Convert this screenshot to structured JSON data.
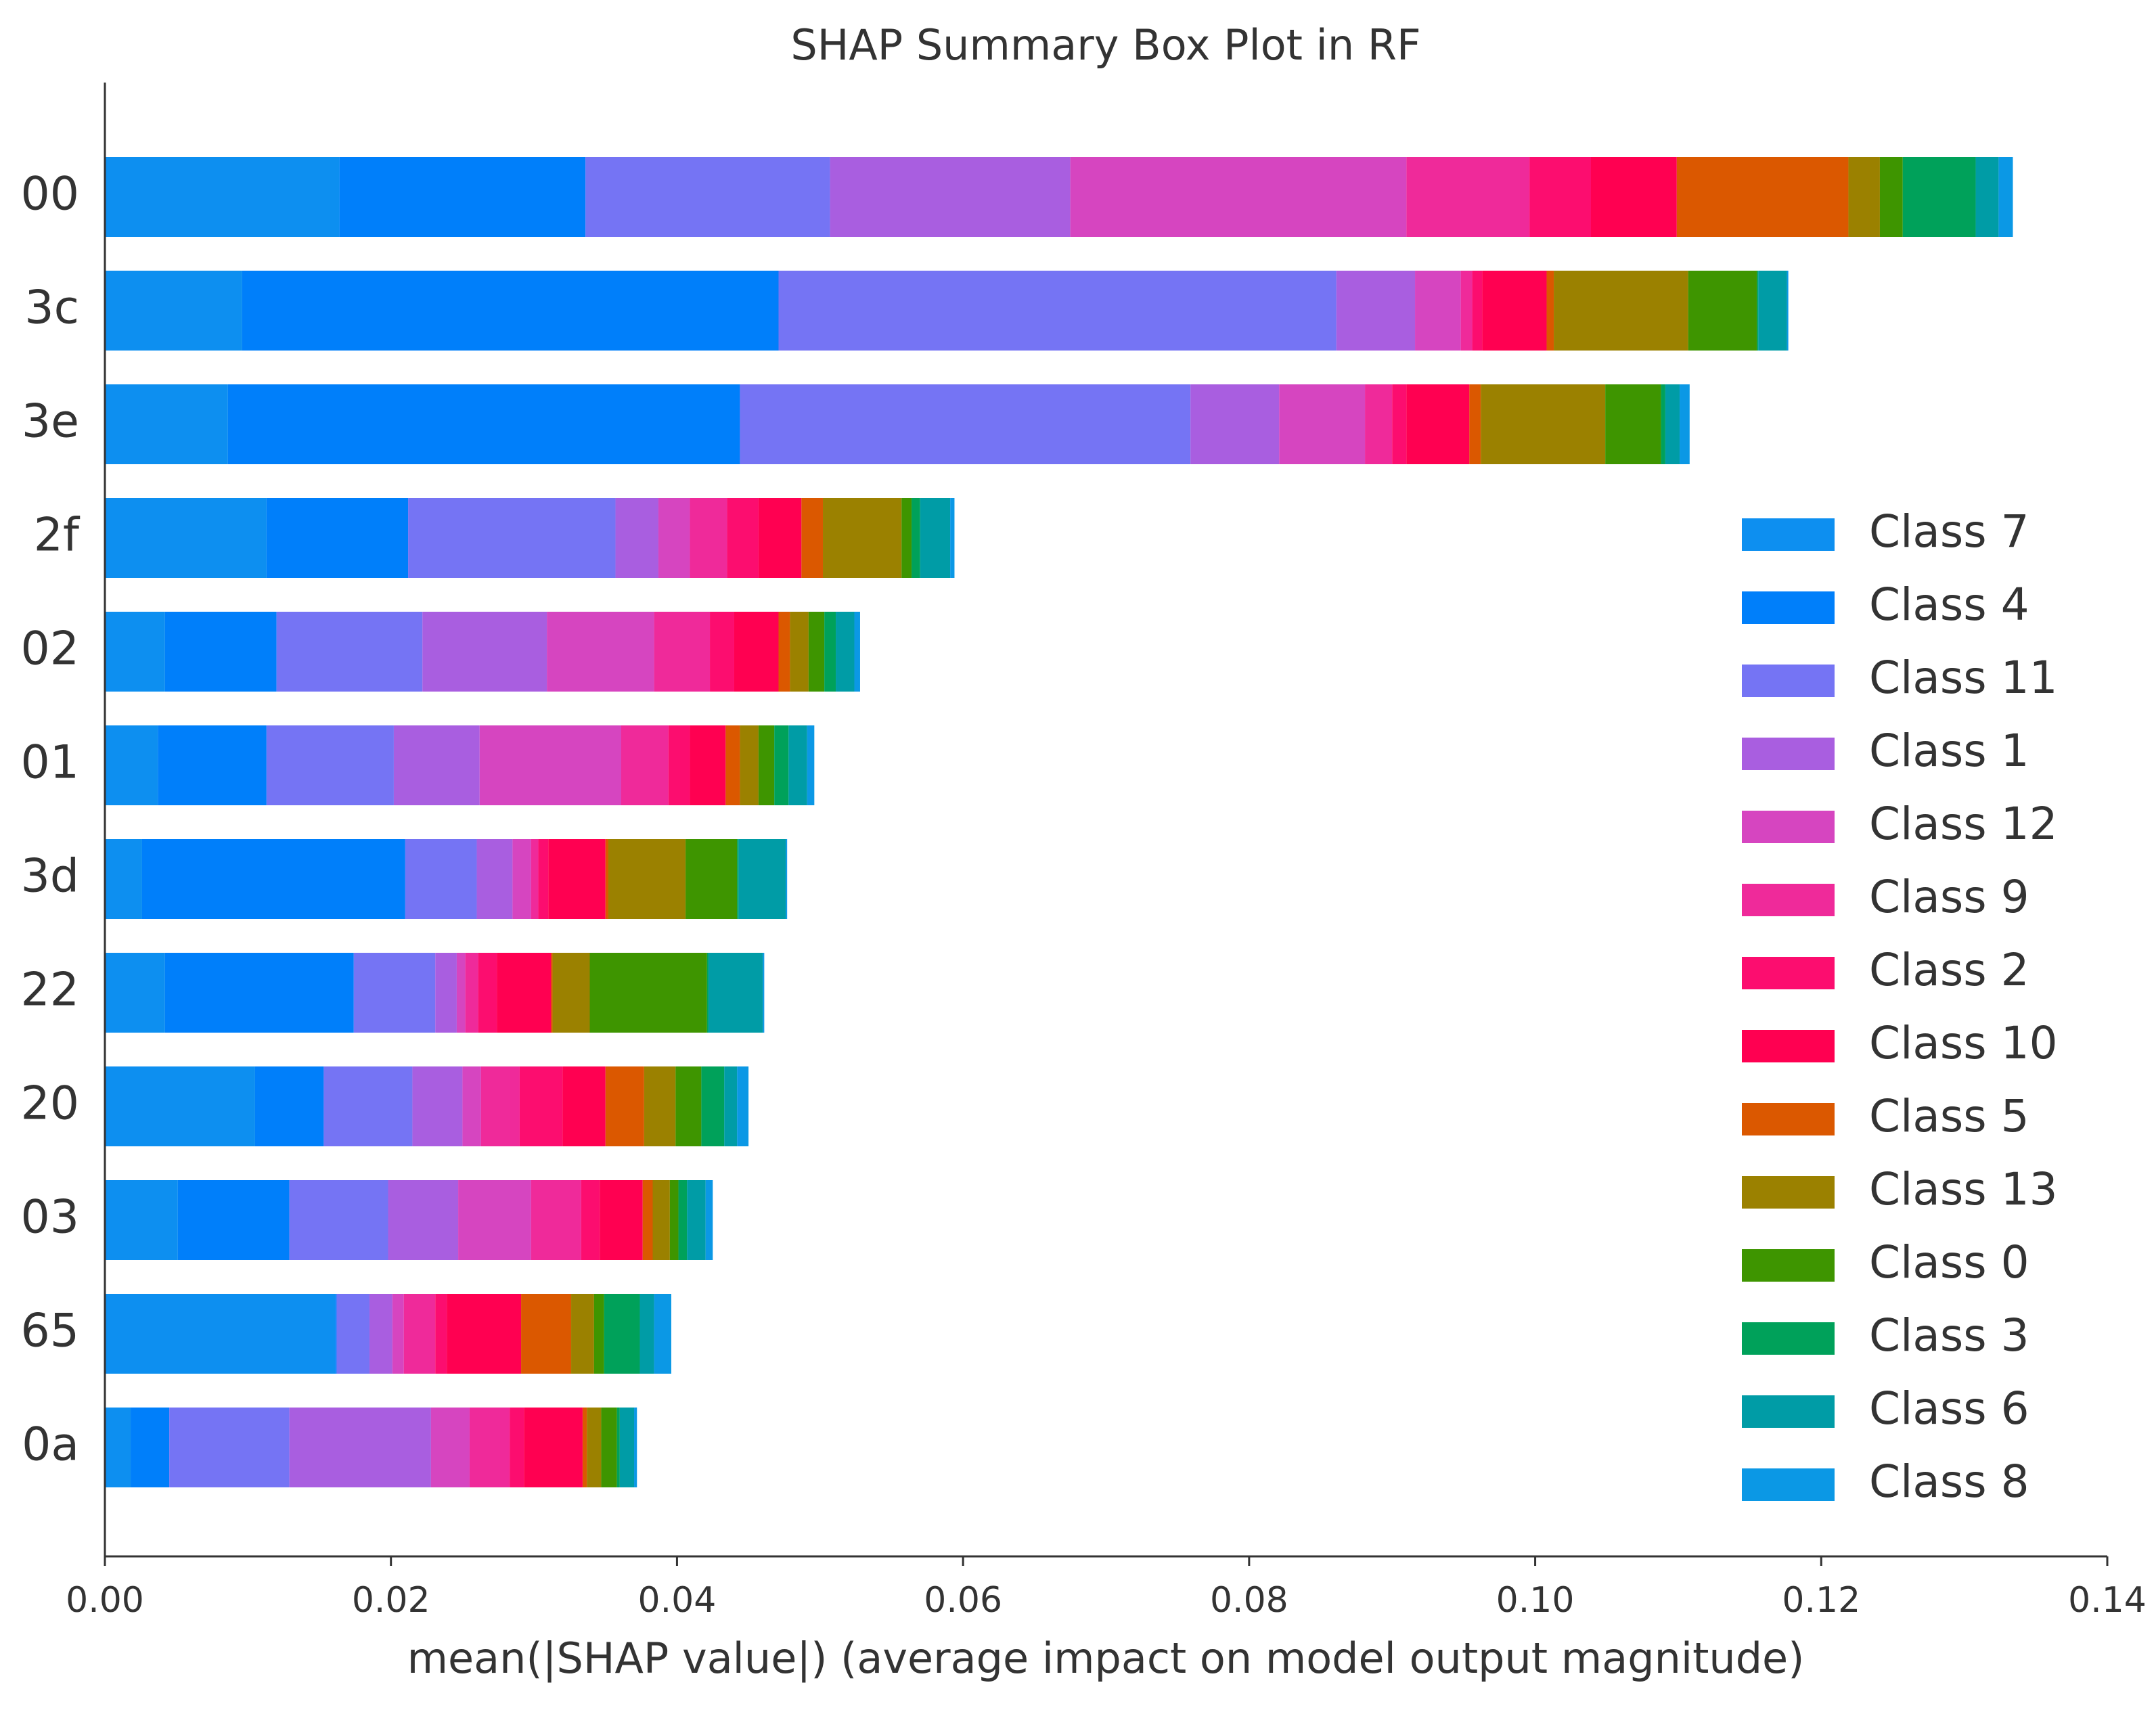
{
  "chart_data": {
    "type": "stacked-bar-horizontal",
    "title": "SHAP Summary Box Plot in RF",
    "x_label": "mean(|SHAP value|) (average impact on model output magnitude)",
    "categories": [
      "00",
      "3c",
      "3e",
      "2f",
      "02",
      "01",
      "3d",
      "22",
      "20",
      "03",
      "65",
      "0a"
    ],
    "xlim": [
      0,
      0.14
    ],
    "xticks": [
      {
        "value": 0,
        "label": "0.00"
      },
      {
        "value": 0.02,
        "label": "0.02"
      },
      {
        "value": 0.04,
        "label": "0.04"
      },
      {
        "value": 0.06,
        "label": "0.06"
      },
      {
        "value": 0.08,
        "label": "0.08"
      },
      {
        "value": 0.1,
        "label": "0.10"
      },
      {
        "value": 0.12,
        "label": "0.12"
      },
      {
        "value": 0.14,
        "label": "0.14"
      }
    ],
    "legend": "right",
    "series": [
      {
        "name": "Class 7",
        "color": "#0d8ff0",
        "values": [
          0.0164,
          0.0096,
          0.0086,
          0.0113,
          0.0042,
          0.0037,
          0.0026,
          0.0042,
          0.0105,
          0.0051,
          0.0161,
          0.0018
        ]
      },
      {
        "name": "Class 4",
        "color": "#007ffa",
        "values": [
          0.0172,
          0.0375,
          0.0358,
          0.0099,
          0.0078,
          0.0076,
          0.0184,
          0.0132,
          0.0048,
          0.0078,
          0.0001,
          0.0027
        ]
      },
      {
        "name": "Class 11",
        "color": "#7574f4",
        "values": [
          0.0171,
          0.039,
          0.0315,
          0.0145,
          0.0102,
          0.0089,
          0.005,
          0.0057,
          0.0062,
          0.0069,
          0.0023,
          0.0084
        ]
      },
      {
        "name": "Class 1",
        "color": "#a95ee0",
        "values": [
          0.0168,
          0.0055,
          0.0062,
          0.003,
          0.0087,
          0.006,
          0.0025,
          0.0015,
          0.0035,
          0.0049,
          0.0016,
          0.0099
        ]
      },
      {
        "name": "Class 12",
        "color": "#d645c0",
        "values": [
          0.0235,
          0.0032,
          0.006,
          0.0022,
          0.0075,
          0.0099,
          0.0013,
          0.0006,
          0.0013,
          0.0051,
          0.0008,
          0.0027
        ]
      },
      {
        "name": "Class 9",
        "color": "#ef2a9a",
        "values": [
          0.0086,
          0.0008,
          0.0019,
          0.0026,
          0.0039,
          0.0033,
          0.0005,
          0.0009,
          0.0027,
          0.0035,
          0.0022,
          0.0028
        ]
      },
      {
        "name": "Class 2",
        "color": "#fc0d6f",
        "values": [
          0.0043,
          0.0007,
          0.001,
          0.0022,
          0.0017,
          0.0015,
          0.0007,
          0.0013,
          0.003,
          0.0013,
          0.0008,
          0.001
        ]
      },
      {
        "name": "Class 10",
        "color": "#ff0051",
        "values": [
          0.006,
          0.0045,
          0.0044,
          0.003,
          0.0031,
          0.0025,
          0.004,
          0.0038,
          0.003,
          0.003,
          0.0052,
          0.0041
        ]
      },
      {
        "name": "Class 5",
        "color": "#db5800",
        "values": [
          0.012,
          0.0005,
          0.0008,
          0.0015,
          0.0008,
          0.001,
          0.0002,
          0.0001,
          0.0027,
          0.0007,
          0.0035,
          0.0003
        ]
      },
      {
        "name": "Class 13",
        "color": "#9b8100",
        "values": [
          0.0022,
          0.0094,
          0.0087,
          0.0055,
          0.0013,
          0.0013,
          0.0054,
          0.0026,
          0.0022,
          0.0012,
          0.0016,
          0.001
        ]
      },
      {
        "name": "Class 0",
        "color": "#3e9500",
        "values": [
          0.0016,
          0.0048,
          0.0039,
          0.0007,
          0.0011,
          0.0011,
          0.0036,
          0.0082,
          0.0018,
          0.0006,
          0.0007,
          0.0011
        ]
      },
      {
        "name": "Class 3",
        "color": "#00a15a",
        "values": [
          0.0051,
          0.0001,
          0.0003,
          0.0006,
          0.0008,
          0.001,
          0.0001,
          0.0001,
          0.0016,
          0.0006,
          0.0025,
          0.0002
        ]
      },
      {
        "name": "Class 6",
        "color": "#009ca6",
        "values": [
          0.0016,
          0.002,
          0.001,
          0.0021,
          0.0013,
          0.0013,
          0.0033,
          0.0038,
          0.0009,
          0.0013,
          0.001,
          0.001
        ]
      },
      {
        "name": "Class 8",
        "color": "#0b98e5",
        "values": [
          0.001,
          0.0001,
          0.0007,
          0.0003,
          0.0004,
          0.0005,
          0.0001,
          0.0001,
          0.0008,
          0.0005,
          0.0012,
          0.0002
        ]
      }
    ]
  }
}
